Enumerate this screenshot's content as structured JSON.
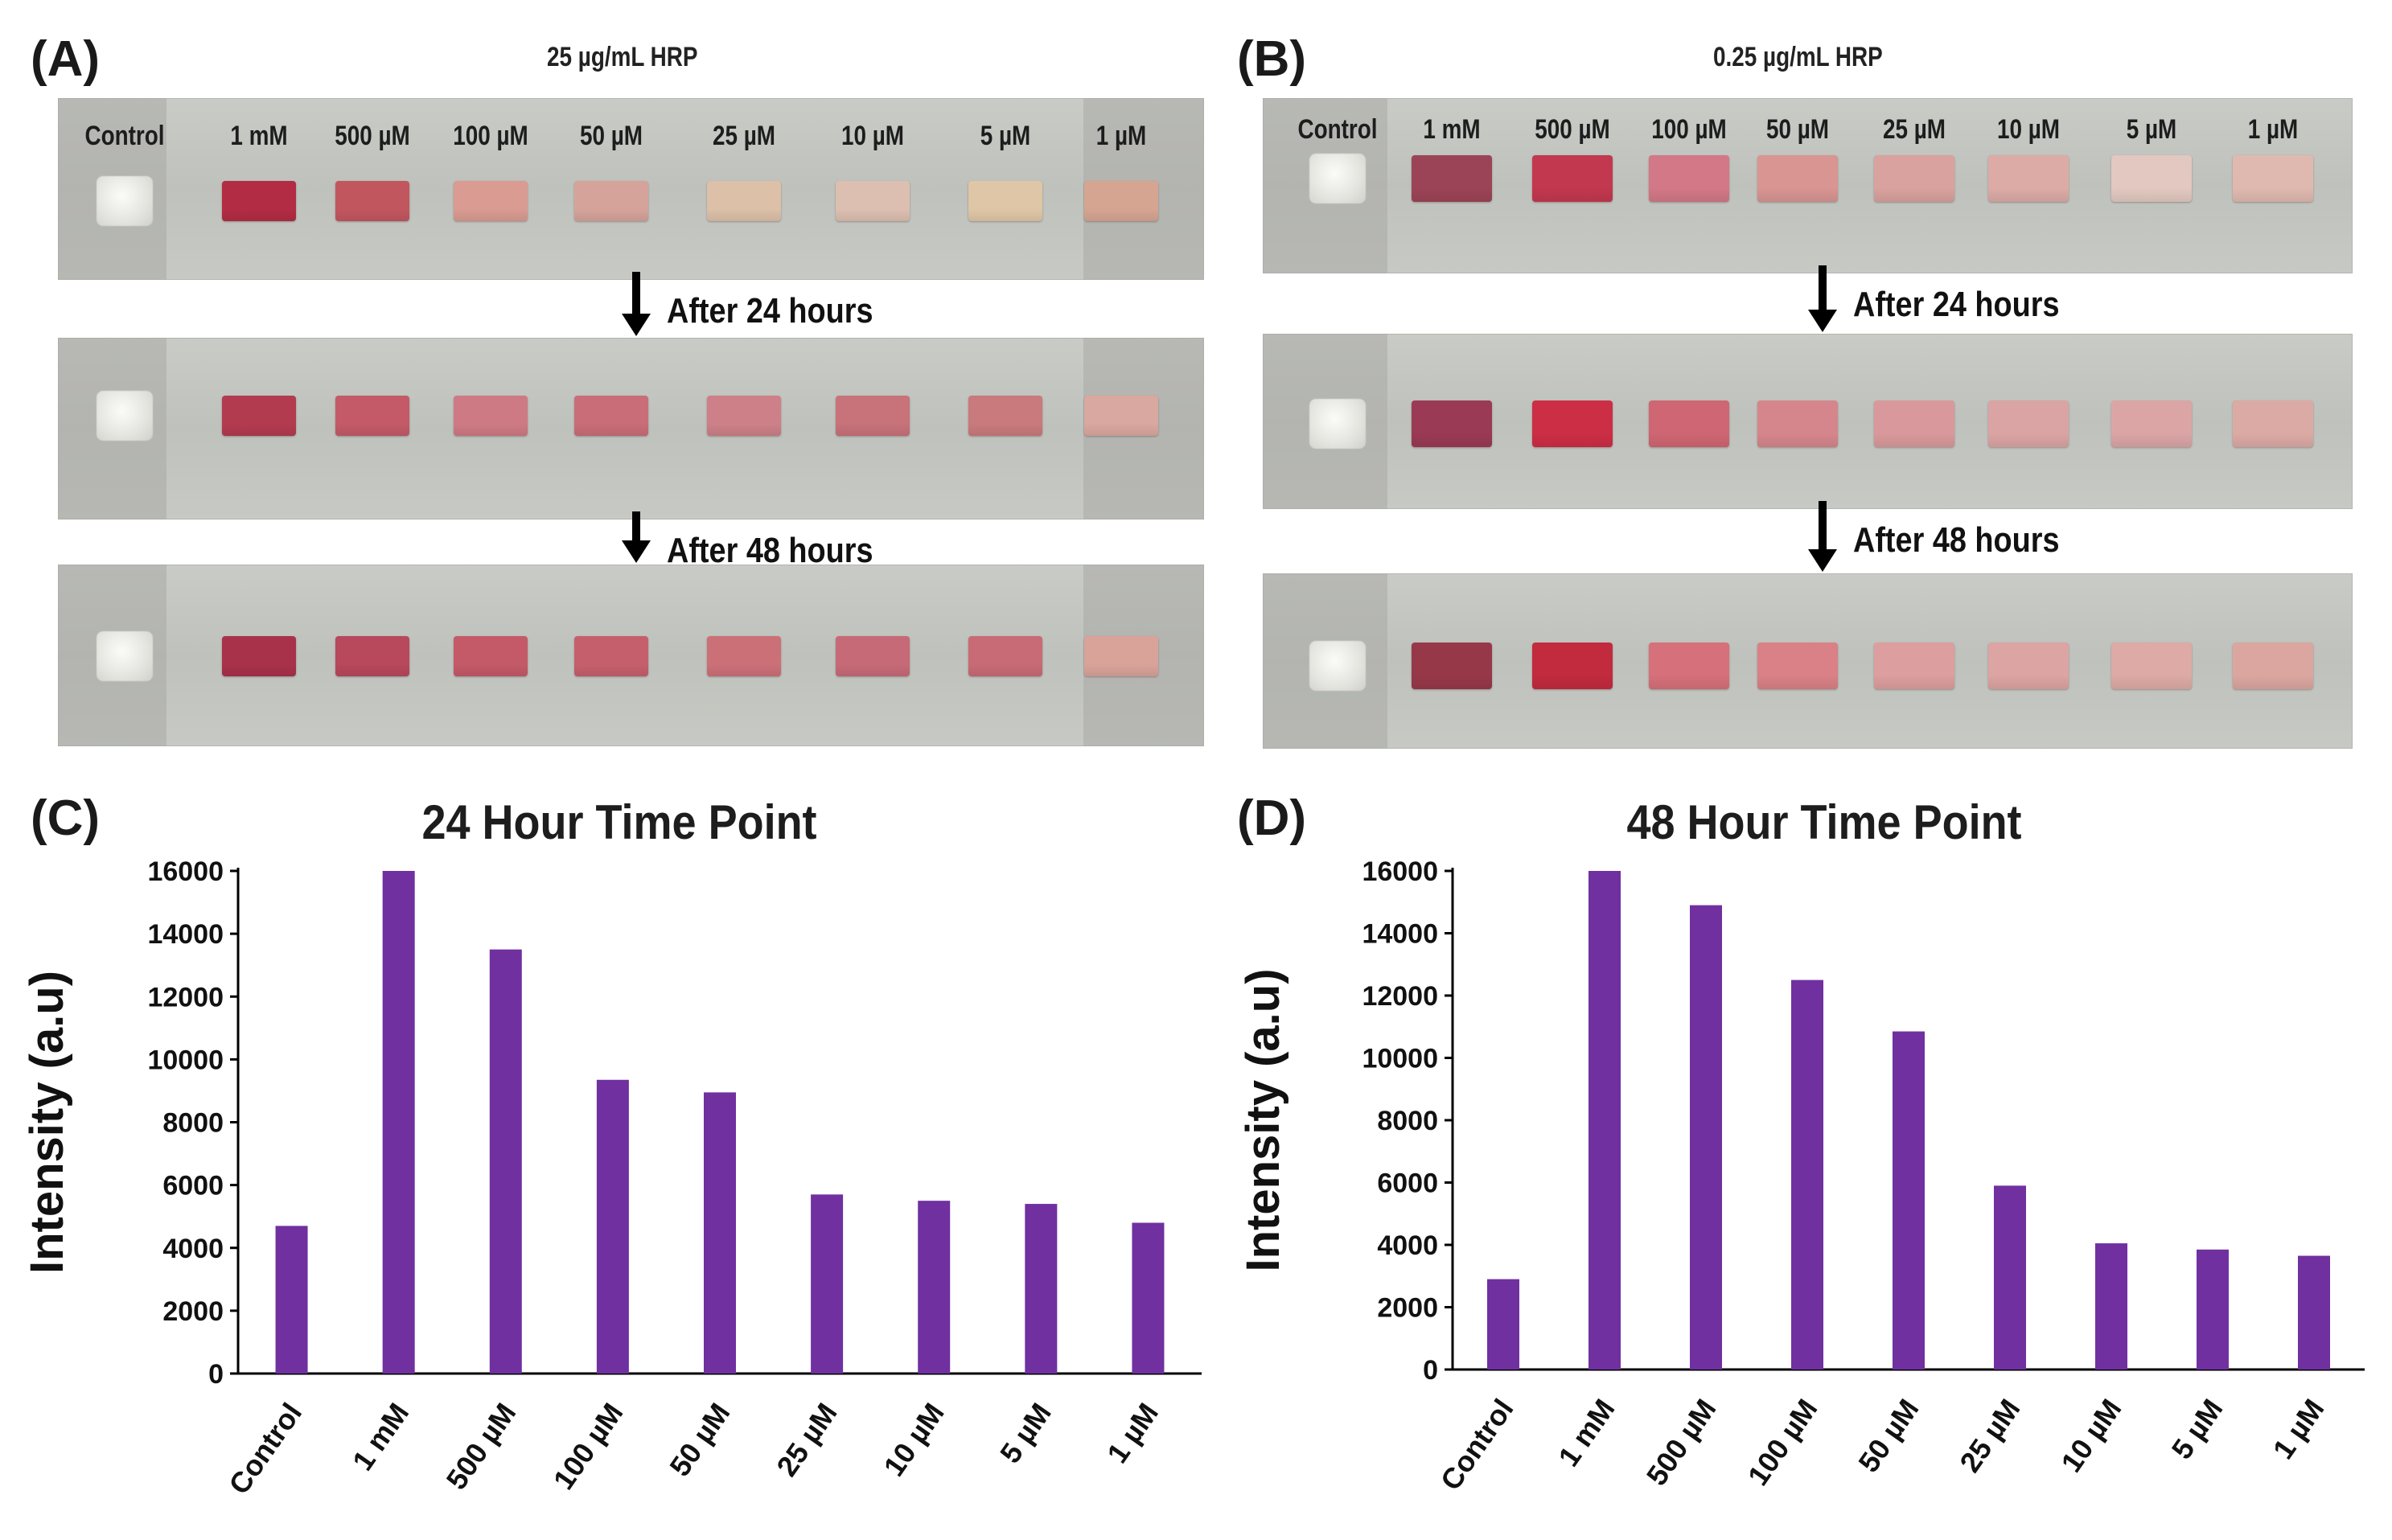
{
  "panels": {
    "a": {
      "label": "(A)",
      "title": "25 µg/mL HRP",
      "concentrations": [
        "Control",
        "1 mM",
        "500 µM",
        "100 µM",
        "50 µM",
        "25 µM",
        "10 µM",
        "5 µM",
        "1 µM"
      ],
      "rows": [
        {
          "label": "",
          "colors": [
            "#ffffff",
            "#b22c44",
            "#c2565f",
            "#d99b92",
            "#d5a39a",
            "#dcc0a8",
            "#dcbfb0",
            "#dfc6a6",
            "#d6a592"
          ]
        },
        {
          "label": "After 24 hours",
          "colors": [
            "#ffffff",
            "#b33b50",
            "#c45a68",
            "#ce7a84",
            "#c96d78",
            "#cd8088",
            "#c8727a",
            "#c97a7c",
            "#d9a8a0"
          ]
        },
        {
          "label": "After 48 hours",
          "colors": [
            "#ffffff",
            "#a8324a",
            "#b8485c",
            "#c45a68",
            "#c65f6c",
            "#cc7078",
            "#c76a78",
            "#c86b76",
            "#d9a39a"
          ]
        }
      ]
    },
    "b": {
      "label": "(B)",
      "title": "0.25 µg/mL HRP",
      "concentrations": [
        "Control",
        "1 mM",
        "500 µM",
        "100 µM",
        "50 µM",
        "25 µM",
        "10 µM",
        "5 µM",
        "1 µM"
      ],
      "rows": [
        {
          "label": "",
          "colors": [
            "#ffffff",
            "#9c4457",
            "#c2384e",
            "#d37886",
            "#d89592",
            "#d9a29e",
            "#dcaba6",
            "#e2c8c0",
            "#dfb9b0"
          ]
        },
        {
          "label": "After 24 hours",
          "colors": [
            "#ffffff",
            "#9a3a54",
            "#cc2e45",
            "#cf6673",
            "#d5868c",
            "#d9999c",
            "#dba4a4",
            "#dba5a6",
            "#dcaaa5"
          ]
        },
        {
          "label": "After 48 hours",
          "colors": [
            "#ffffff",
            "#973849",
            "#c22a3e",
            "#d6707a",
            "#d98186",
            "#dc9e9e",
            "#dca4a2",
            "#ddaaa5",
            "#dba6a0"
          ]
        }
      ]
    },
    "c": {
      "label": "(C)"
    },
    "d": {
      "label": "(D)"
    }
  },
  "chart_data": [
    {
      "type": "bar",
      "title": "24 Hour Time Point",
      "ylabel": "Intensity (a.u)",
      "xlabel": "",
      "categories": [
        "Control",
        "1 mM",
        "500 µM",
        "100 µM",
        "50 µM",
        "25 µM",
        "10 µM",
        "5 µM",
        "1 µM"
      ],
      "values": [
        4700,
        16000,
        13500,
        9350,
        8950,
        5700,
        5500,
        5400,
        4800
      ],
      "ylim": [
        0,
        16000
      ],
      "yticks": [
        0,
        2000,
        4000,
        6000,
        8000,
        10000,
        12000,
        14000,
        16000
      ],
      "bar_color": "#7030a0"
    },
    {
      "type": "bar",
      "title": "48 Hour Time Point",
      "ylabel": "Intensity (a.u)",
      "xlabel": "",
      "categories": [
        "Control",
        "1 mM",
        "500 µM",
        "100 µM",
        "50 µM",
        "25 µM",
        "10 µM",
        "5 µM",
        "1 µM"
      ],
      "values": [
        2900,
        16000,
        14900,
        12500,
        10850,
        5900,
        4050,
        3850,
        3650
      ],
      "ylim": [
        0,
        16000
      ],
      "yticks": [
        0,
        2000,
        4000,
        6000,
        8000,
        10000,
        12000,
        14000,
        16000
      ],
      "bar_color": "#7030a0"
    }
  ]
}
